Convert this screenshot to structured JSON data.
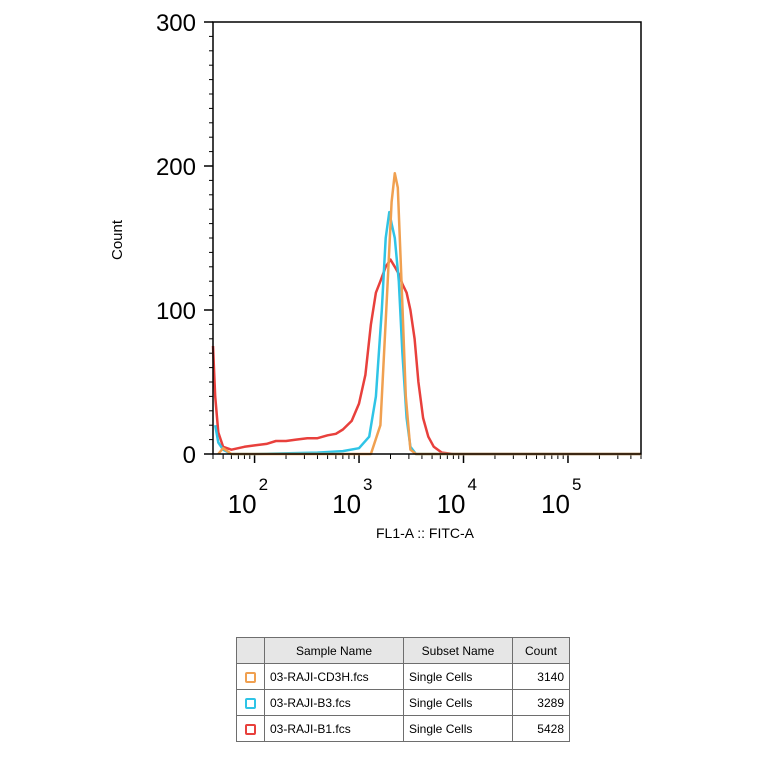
{
  "chart_data": {
    "type": "line",
    "xscale": "log",
    "xlabel": "FL1-A :: FITC-A",
    "ylabel": "Count",
    "xlim": [
      40,
      500000
    ],
    "ylim": [
      0,
      300
    ],
    "x_ticks": [
      {
        "base": "10",
        "exp": "2",
        "value": 100
      },
      {
        "base": "10",
        "exp": "3",
        "value": 1000
      },
      {
        "base": "10",
        "exp": "4",
        "value": 10000
      },
      {
        "base": "10",
        "exp": "5",
        "value": 100000
      }
    ],
    "y_ticks": [
      "0",
      "100",
      "200",
      "300"
    ],
    "y_tick_values": [
      0,
      100,
      200,
      300
    ],
    "series": [
      {
        "name": "03-RAJI-CD3H.fcs",
        "color": "#f0a050",
        "points": [
          [
            45,
            0
          ],
          [
            50,
            4
          ],
          [
            60,
            0
          ],
          [
            200,
            0
          ],
          [
            1000,
            0
          ],
          [
            1300,
            0
          ],
          [
            1600,
            20
          ],
          [
            1850,
            110
          ],
          [
            2050,
            175
          ],
          [
            2200,
            195
          ],
          [
            2350,
            185
          ],
          [
            2550,
            120
          ],
          [
            2800,
            40
          ],
          [
            3100,
            3
          ],
          [
            3500,
            0
          ],
          [
            10000,
            0
          ],
          [
            500000,
            0
          ]
        ]
      },
      {
        "name": "03-RAJI-B3.fcs",
        "color": "#2fc4e6",
        "points": [
          [
            42,
            20
          ],
          [
            45,
            8
          ],
          [
            50,
            3
          ],
          [
            60,
            0
          ],
          [
            100,
            0
          ],
          [
            400,
            1
          ],
          [
            700,
            2
          ],
          [
            1000,
            4
          ],
          [
            1250,
            12
          ],
          [
            1450,
            40
          ],
          [
            1650,
            100
          ],
          [
            1800,
            150
          ],
          [
            1950,
            168
          ],
          [
            2050,
            160
          ],
          [
            2200,
            150
          ],
          [
            2400,
            120
          ],
          [
            2600,
            70
          ],
          [
            2850,
            25
          ],
          [
            3100,
            5
          ],
          [
            3500,
            0
          ],
          [
            10000,
            0
          ],
          [
            500000,
            0
          ]
        ]
      },
      {
        "name": "03-RAJI-B1.fcs",
        "color": "#e8403c",
        "points": [
          [
            40,
            75
          ],
          [
            42,
            40
          ],
          [
            45,
            15
          ],
          [
            50,
            5
          ],
          [
            60,
            3
          ],
          [
            80,
            5
          ],
          [
            100,
            6
          ],
          [
            130,
            7
          ],
          [
            160,
            9
          ],
          [
            200,
            9
          ],
          [
            250,
            10
          ],
          [
            320,
            11
          ],
          [
            400,
            11
          ],
          [
            500,
            13
          ],
          [
            600,
            14
          ],
          [
            700,
            17
          ],
          [
            850,
            23
          ],
          [
            1000,
            35
          ],
          [
            1150,
            55
          ],
          [
            1300,
            90
          ],
          [
            1450,
            112
          ],
          [
            1600,
            120
          ],
          [
            1800,
            130
          ],
          [
            2000,
            135
          ],
          [
            2200,
            130
          ],
          [
            2400,
            125
          ],
          [
            2600,
            118
          ],
          [
            2850,
            112
          ],
          [
            3100,
            100
          ],
          [
            3400,
            80
          ],
          [
            3700,
            50
          ],
          [
            4100,
            25
          ],
          [
            4600,
            12
          ],
          [
            5200,
            5
          ],
          [
            6200,
            1
          ],
          [
            8000,
            0
          ],
          [
            500000,
            0
          ]
        ]
      }
    ]
  },
  "legend": {
    "headers": [
      "",
      "Sample Name",
      "Subset Name",
      "Count"
    ],
    "rows": [
      {
        "sample": "03-RAJI-CD3H.fcs",
        "subset": "Single Cells",
        "count": "3140",
        "color": "#f0a050"
      },
      {
        "sample": "03-RAJI-B3.fcs",
        "subset": "Single Cells",
        "count": "3289",
        "color": "#2fc4e6"
      },
      {
        "sample": "03-RAJI-B1.fcs",
        "subset": "Single Cells",
        "count": "5428",
        "color": "#e8403c"
      }
    ]
  }
}
